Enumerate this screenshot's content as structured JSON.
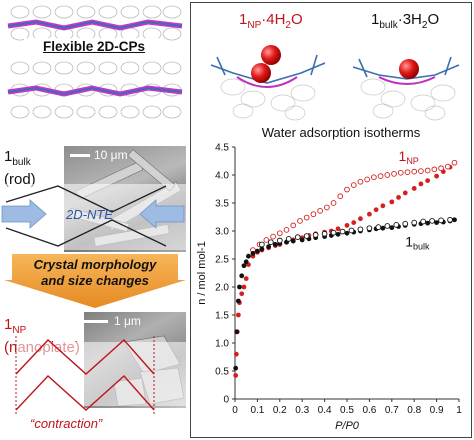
{
  "left": {
    "crystal_title": "Flexible 2D-CPs",
    "bulk_label": {
      "main": "1",
      "sub": "bulk",
      "shape": "(rod)"
    },
    "bulk_scale": "10 μm",
    "nte_label": "2D-NTE",
    "arrow_text_line1": "Crystal morphology",
    "arrow_text_line2": "and size changes",
    "np_label": {
      "main": "1",
      "sub": "NP",
      "shape": "(nanoplate)"
    },
    "np_scale": "1 μm",
    "contraction_label": "“contraction”",
    "colors": {
      "red": "#c0141c",
      "blue_arrow": "#8fb0dc",
      "orange": "#f3a23a",
      "orange_dark": "#e07f1c"
    }
  },
  "right": {
    "struct_np": {
      "main": "1",
      "sub": "NP",
      "suffix": "·4H",
      "sub2": "2",
      "suffix2": "O"
    },
    "struct_bulk": {
      "main": "1",
      "sub": "bulk",
      "suffix": "·3H",
      "sub2": "2",
      "suffix2": "O"
    }
  },
  "chart_data": {
    "type": "scatter",
    "title": "Water adsorption isotherms",
    "xlabel": "P/P0",
    "ylabel": "n / mol mol-1",
    "xlim": [
      0,
      1
    ],
    "ylim": [
      0,
      4.5
    ],
    "xticks": [
      "0",
      "0.1",
      "0.2",
      "0.3",
      "0.4",
      "0.5",
      "0.6",
      "0.7",
      "0.8",
      "0.9",
      "1"
    ],
    "yticks": [
      "0",
      "0.5",
      "1.0",
      "1.5",
      "2.0",
      "2.5",
      "3.0",
      "3.5",
      "4.0",
      "4.5"
    ],
    "series": [
      {
        "name": "1NP",
        "label_main": "1",
        "label_sub": "NP",
        "color": "#d42020",
        "marker": "filled",
        "x": [
          0.003,
          0.006,
          0.01,
          0.015,
          0.02,
          0.03,
          0.04,
          0.05,
          0.06,
          0.08,
          0.1,
          0.12,
          0.15,
          0.18,
          0.2,
          0.23,
          0.26,
          0.3,
          0.33,
          0.36,
          0.4,
          0.43,
          0.46,
          0.5,
          0.53,
          0.56,
          0.6,
          0.63,
          0.66,
          0.7,
          0.73,
          0.76,
          0.8,
          0.83,
          0.86,
          0.9,
          0.93,
          0.96,
          0.98
        ],
        "y": [
          0.42,
          0.8,
          1.2,
          1.5,
          1.72,
          1.88,
          2.0,
          2.15,
          2.4,
          2.55,
          2.62,
          2.66,
          2.7,
          2.74,
          2.76,
          2.8,
          2.84,
          2.88,
          2.92,
          2.95,
          2.98,
          3.0,
          3.04,
          3.1,
          3.15,
          3.22,
          3.3,
          3.38,
          3.45,
          3.52,
          3.6,
          3.68,
          3.76,
          3.84,
          3.9,
          3.98,
          4.06,
          4.14,
          4.22
        ]
      },
      {
        "name": "1NP desorption",
        "color": "#d42020",
        "marker": "open",
        "x": [
          0.98,
          0.95,
          0.92,
          0.89,
          0.86,
          0.83,
          0.8,
          0.77,
          0.74,
          0.71,
          0.68,
          0.65,
          0.62,
          0.59,
          0.56,
          0.53,
          0.5,
          0.47,
          0.44,
          0.41,
          0.38,
          0.35,
          0.32,
          0.29,
          0.26,
          0.23,
          0.2,
          0.17,
          0.14,
          0.11,
          0.08
        ],
        "y": [
          4.22,
          4.15,
          4.12,
          4.1,
          4.08,
          4.07,
          4.06,
          4.05,
          4.04,
          4.02,
          4.0,
          3.98,
          3.96,
          3.92,
          3.88,
          3.82,
          3.74,
          3.62,
          3.5,
          3.42,
          3.36,
          3.3,
          3.24,
          3.18,
          3.1,
          3.02,
          2.96,
          2.9,
          2.84,
          2.76,
          2.66
        ]
      },
      {
        "name": "1bulk",
        "label_main": "1",
        "label_sub": "bulk",
        "color": "#111111",
        "marker": "filled",
        "x": [
          0.003,
          0.008,
          0.015,
          0.02,
          0.03,
          0.04,
          0.05,
          0.06,
          0.08,
          0.1,
          0.12,
          0.15,
          0.18,
          0.2,
          0.23,
          0.26,
          0.3,
          0.33,
          0.36,
          0.4,
          0.43,
          0.46,
          0.5,
          0.53,
          0.56,
          0.6,
          0.63,
          0.66,
          0.7,
          0.73,
          0.76,
          0.8,
          0.83,
          0.86,
          0.9,
          0.93,
          0.96,
          0.98
        ],
        "y": [
          0.55,
          1.2,
          1.75,
          2.0,
          2.2,
          2.38,
          2.45,
          2.55,
          2.6,
          2.64,
          2.68,
          2.72,
          2.76,
          2.78,
          2.8,
          2.82,
          2.84,
          2.86,
          2.88,
          2.9,
          2.92,
          2.94,
          2.96,
          2.98,
          3.0,
          3.02,
          3.04,
          3.05,
          3.06,
          3.08,
          3.1,
          3.12,
          3.13,
          3.14,
          3.15,
          3.16,
          3.18,
          3.2
        ]
      },
      {
        "name": "1bulk desorption",
        "color": "#111111",
        "marker": "open",
        "x": [
          0.96,
          0.92,
          0.88,
          0.84,
          0.8,
          0.76,
          0.72,
          0.68,
          0.64,
          0.6,
          0.56,
          0.52,
          0.48,
          0.44,
          0.4,
          0.36,
          0.32,
          0.28,
          0.24,
          0.2,
          0.16,
          0.12
        ],
        "y": [
          3.2,
          3.19,
          3.18,
          3.17,
          3.15,
          3.13,
          3.11,
          3.09,
          3.07,
          3.05,
          3.03,
          3.01,
          2.99,
          2.97,
          2.95,
          2.93,
          2.91,
          2.89,
          2.86,
          2.83,
          2.8,
          2.76
        ]
      }
    ],
    "grid": false,
    "legend": "inline labels"
  }
}
